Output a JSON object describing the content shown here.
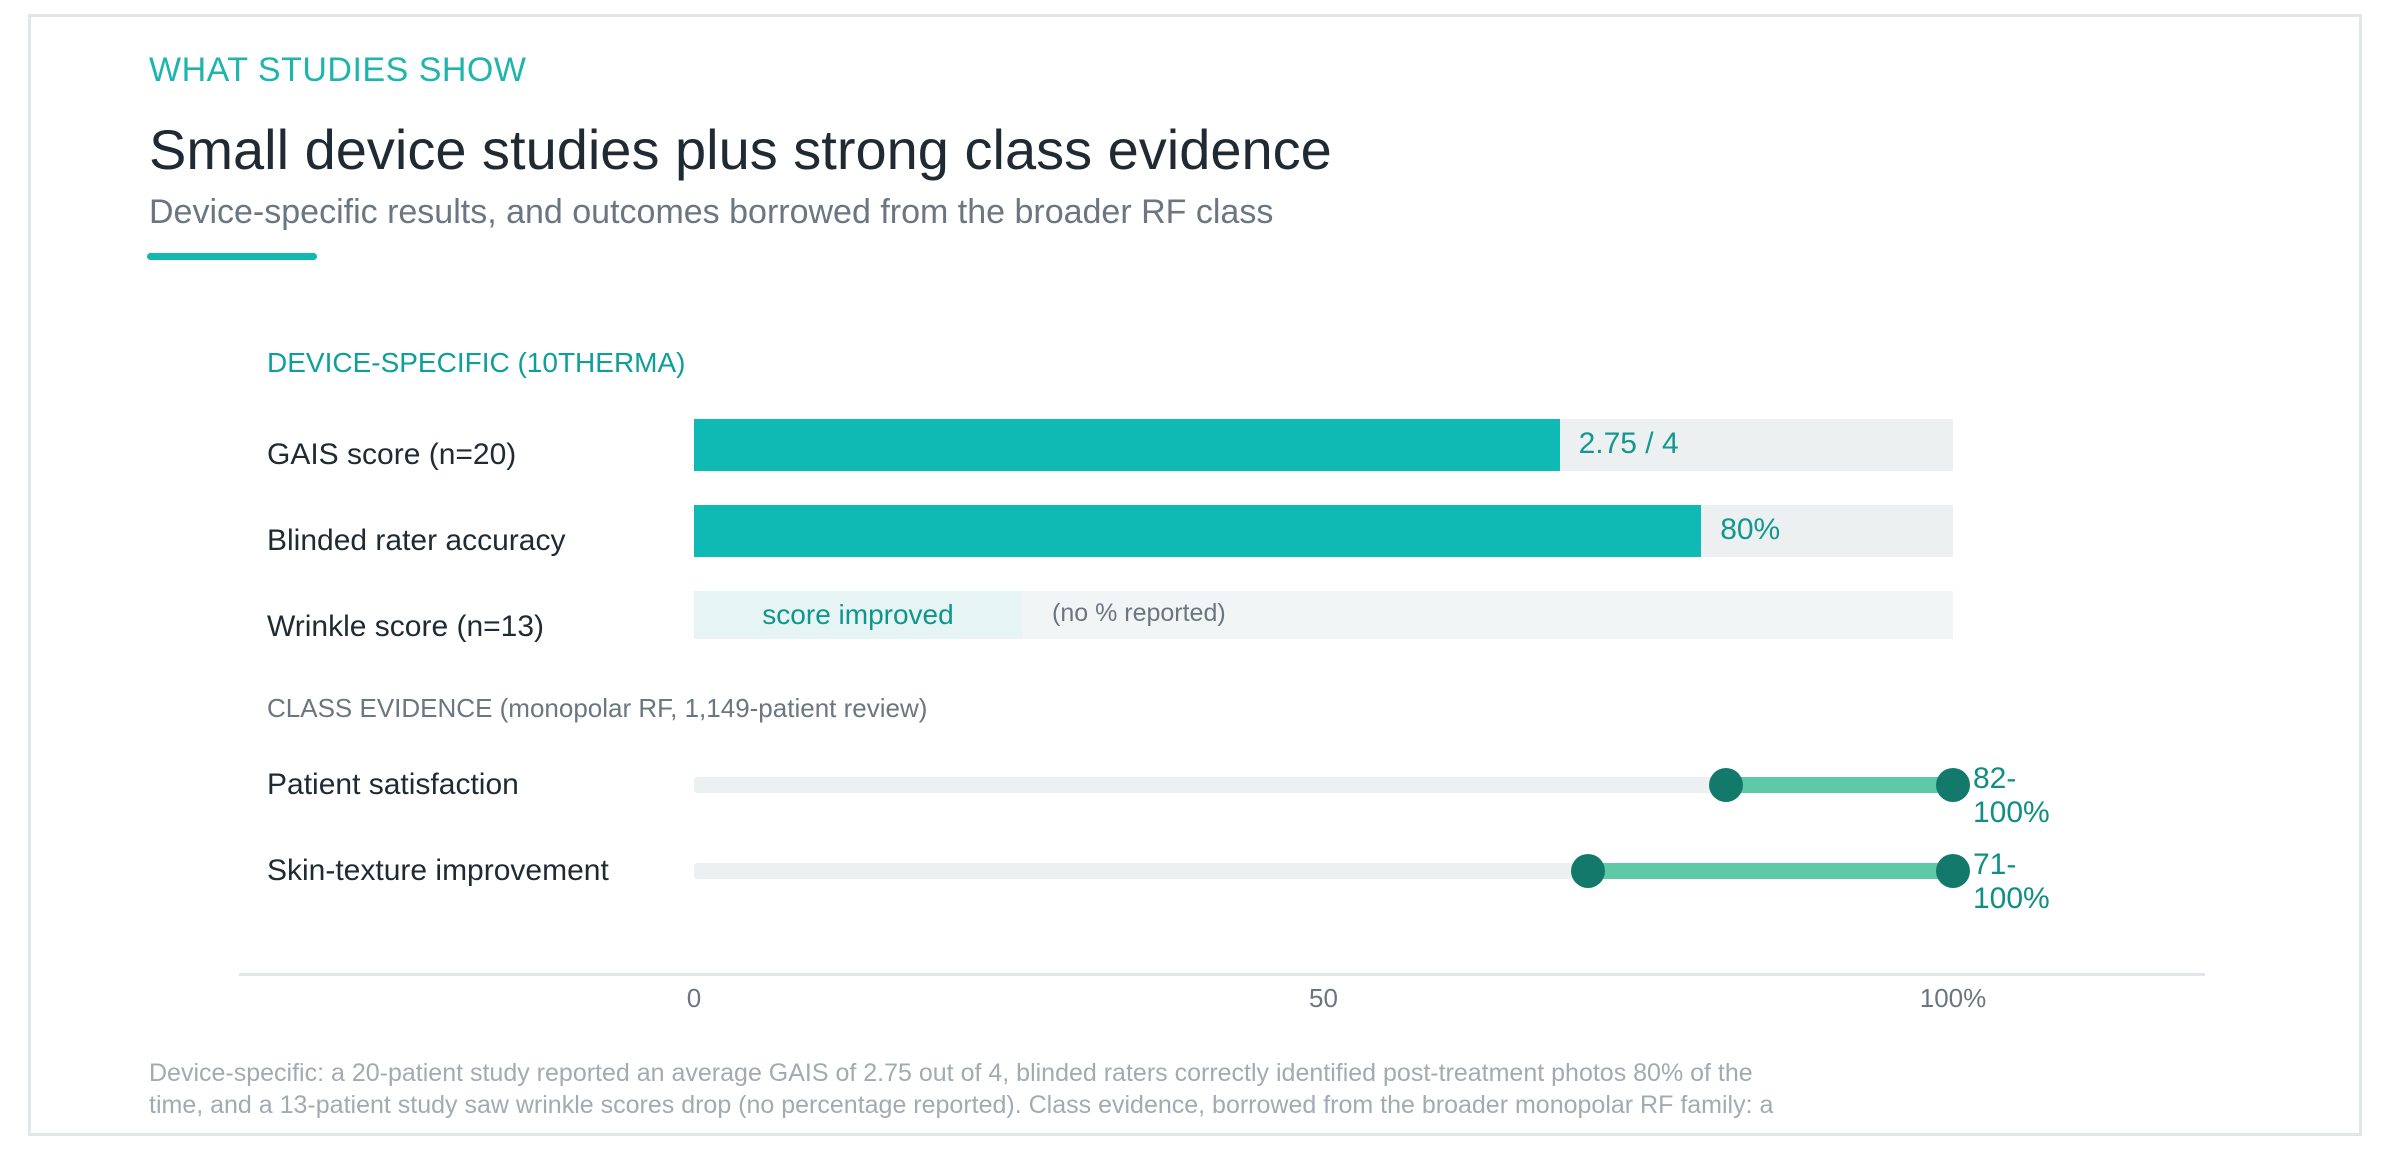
{
  "header": {
    "eyebrow": "WHAT STUDIES SHOW",
    "title": "Small device studies plus strong class evidence",
    "subtitle": "Device-specific results, and outcomes borrowed from the broader RF class"
  },
  "colors": {
    "accent": "#12b8b2",
    "bar_fill": "#0fbab4",
    "range_fill": "#5ec9a6",
    "range_dot": "#137a6b",
    "track": "#edf0f1"
  },
  "chart_data": {
    "type": "bar",
    "xlim": [
      0,
      100
    ],
    "ticks": [
      "0",
      "50",
      "100%"
    ],
    "sections": {
      "device": {
        "label": "DEVICE-SPECIFIC (10THERMA)",
        "rows": [
          {
            "label": "GAIS score (n=20)",
            "value": 68.75,
            "display": "2.75 / 4"
          },
          {
            "label": "Blinded rater accuracy",
            "value": 80,
            "display": "80%"
          },
          {
            "label": "Wrinkle score (n=13)",
            "pill": "score improved",
            "note": "(no % reported)"
          }
        ]
      },
      "class": {
        "label": "CLASS EVIDENCE (monopolar RF, 1,149-patient review)",
        "ranges": [
          {
            "label": "Patient satisfaction",
            "low": 82,
            "high": 100,
            "display": "82-100%"
          },
          {
            "label": "Skin-texture improvement",
            "low": 71,
            "high": 100,
            "display": "71-100%"
          }
        ]
      }
    }
  },
  "footnote": "Device-specific: a 20-patient study reported an average GAIS of 2.75 out of 4, blinded raters correctly identified post-treatment photos 80% of the time, and a 13-patient study saw wrinkle scores drop (no percentage reported). Class evidence, borrowed from the broader monopolar RF family: a"
}
